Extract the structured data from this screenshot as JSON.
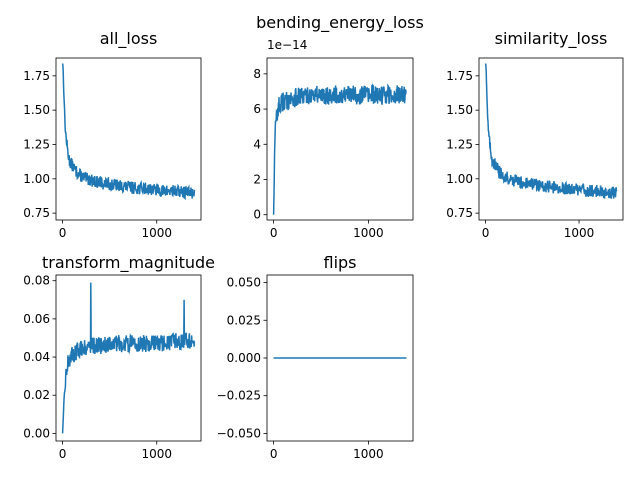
{
  "chart_data": [
    {
      "id": "all_loss",
      "type": "line",
      "title": "all_loss",
      "xlim": [
        -70,
        1470
      ],
      "ylim": [
        0.7,
        1.88
      ],
      "xticks": [
        0,
        1000
      ],
      "xticklabels": [
        "0",
        "1000"
      ],
      "yticks": [
        0.75,
        1.0,
        1.25,
        1.5,
        1.75
      ],
      "yticklabels": [
        "0.75",
        "1.00",
        "1.25",
        "1.50",
        "1.75"
      ],
      "color": "#1f77b4",
      "series": [
        {
          "x": [
            0,
            5,
            10,
            20,
            30,
            50,
            70,
            100,
            130,
            160,
            200,
            250,
            300,
            350,
            400,
            500,
            600,
            700,
            800,
            900,
            1000,
            1100,
            1200,
            1300,
            1400
          ],
          "y": [
            1.84,
            1.82,
            1.7,
            1.5,
            1.35,
            1.22,
            1.14,
            1.1,
            1.07,
            1.04,
            1.02,
            1.0,
            0.99,
            0.98,
            0.97,
            0.96,
            0.95,
            0.94,
            0.93,
            0.93,
            0.92,
            0.91,
            0.91,
            0.9,
            0.9
          ],
          "noise": 0.045
        }
      ]
    },
    {
      "id": "bending_energy_loss",
      "type": "line",
      "title": "bending_energy_loss",
      "offset_text": "1e−14",
      "xlim": [
        -70,
        1470
      ],
      "ylim": [
        -0.3,
        8.9
      ],
      "xticks": [
        0,
        1000
      ],
      "xticklabels": [
        "0",
        "1000"
      ],
      "yticks": [
        0,
        2,
        4,
        6,
        8
      ],
      "yticklabels": [
        "0",
        "2",
        "4",
        "6",
        "8"
      ],
      "color": "#1f77b4",
      "series": [
        {
          "x": [
            0,
            10,
            20,
            40,
            60,
            100,
            150,
            200,
            300,
            400,
            500,
            600,
            700,
            800,
            900,
            1000,
            1100,
            1200,
            1300,
            1400
          ],
          "y": [
            0.0,
            3.5,
            5.2,
            5.9,
            6.2,
            6.4,
            6.5,
            6.6,
            6.7,
            6.8,
            6.8,
            6.8,
            6.8,
            6.8,
            6.8,
            6.8,
            6.8,
            6.8,
            6.8,
            6.9
          ],
          "noise": 0.55
        }
      ]
    },
    {
      "id": "similarity_loss",
      "type": "line",
      "title": "similarity_loss",
      "xlim": [
        -70,
        1470
      ],
      "ylim": [
        0.7,
        1.88
      ],
      "xticks": [
        0,
        1000
      ],
      "xticklabels": [
        "0",
        "1000"
      ],
      "yticks": [
        0.75,
        1.0,
        1.25,
        1.5,
        1.75
      ],
      "yticklabels": [
        "0.75",
        "1.00",
        "1.25",
        "1.50",
        "1.75"
      ],
      "color": "#1f77b4",
      "series": [
        {
          "x": [
            0,
            5,
            10,
            20,
            30,
            50,
            70,
            100,
            130,
            160,
            200,
            250,
            300,
            350,
            400,
            500,
            600,
            700,
            800,
            900,
            1000,
            1100,
            1200,
            1300,
            1400
          ],
          "y": [
            1.84,
            1.82,
            1.7,
            1.5,
            1.35,
            1.22,
            1.14,
            1.1,
            1.07,
            1.04,
            1.02,
            1.0,
            0.99,
            0.98,
            0.97,
            0.96,
            0.95,
            0.94,
            0.93,
            0.93,
            0.92,
            0.91,
            0.91,
            0.9,
            0.9
          ],
          "noise": 0.045
        }
      ]
    },
    {
      "id": "transform_magnitude",
      "type": "line",
      "title": "transform_magnitude",
      "xlim": [
        -70,
        1470
      ],
      "ylim": [
        -0.004,
        0.083
      ],
      "xticks": [
        0,
        1000
      ],
      "xticklabels": [
        "0",
        "1000"
      ],
      "yticks": [
        0.0,
        0.02,
        0.04,
        0.06,
        0.08
      ],
      "yticklabels": [
        "0.00",
        "0.02",
        "0.04",
        "0.06",
        "0.08"
      ],
      "color": "#1f77b4",
      "series": [
        {
          "x": [
            0,
            10,
            20,
            40,
            60,
            100,
            150,
            200,
            300,
            400,
            500,
            600,
            700,
            800,
            900,
            1000,
            1100,
            1200,
            1300,
            1400
          ],
          "y": [
            0.0,
            0.01,
            0.022,
            0.032,
            0.038,
            0.041,
            0.043,
            0.045,
            0.046,
            0.046,
            0.047,
            0.047,
            0.047,
            0.047,
            0.047,
            0.047,
            0.047,
            0.048,
            0.048,
            0.048
          ],
          "noise": 0.0045,
          "spikes": [
            [
              300,
              0.079
            ],
            [
              1290,
              0.07
            ]
          ]
        }
      ]
    },
    {
      "id": "flips",
      "type": "line",
      "title": "flips",
      "xlim": [
        -70,
        1470
      ],
      "ylim": [
        -0.055,
        0.055
      ],
      "xticks": [
        0,
        1000
      ],
      "xticklabels": [
        "0",
        "1000"
      ],
      "yticks": [
        -0.05,
        -0.025,
        0.0,
        0.025,
        0.05
      ],
      "yticklabels": [
        "−0.050",
        "−0.025",
        "0.000",
        "0.025",
        "0.050"
      ],
      "color": "#1f77b4",
      "series": [
        {
          "x": [
            0,
            1400
          ],
          "y": [
            0.0,
            0.0
          ],
          "noise": 0
        }
      ]
    }
  ]
}
